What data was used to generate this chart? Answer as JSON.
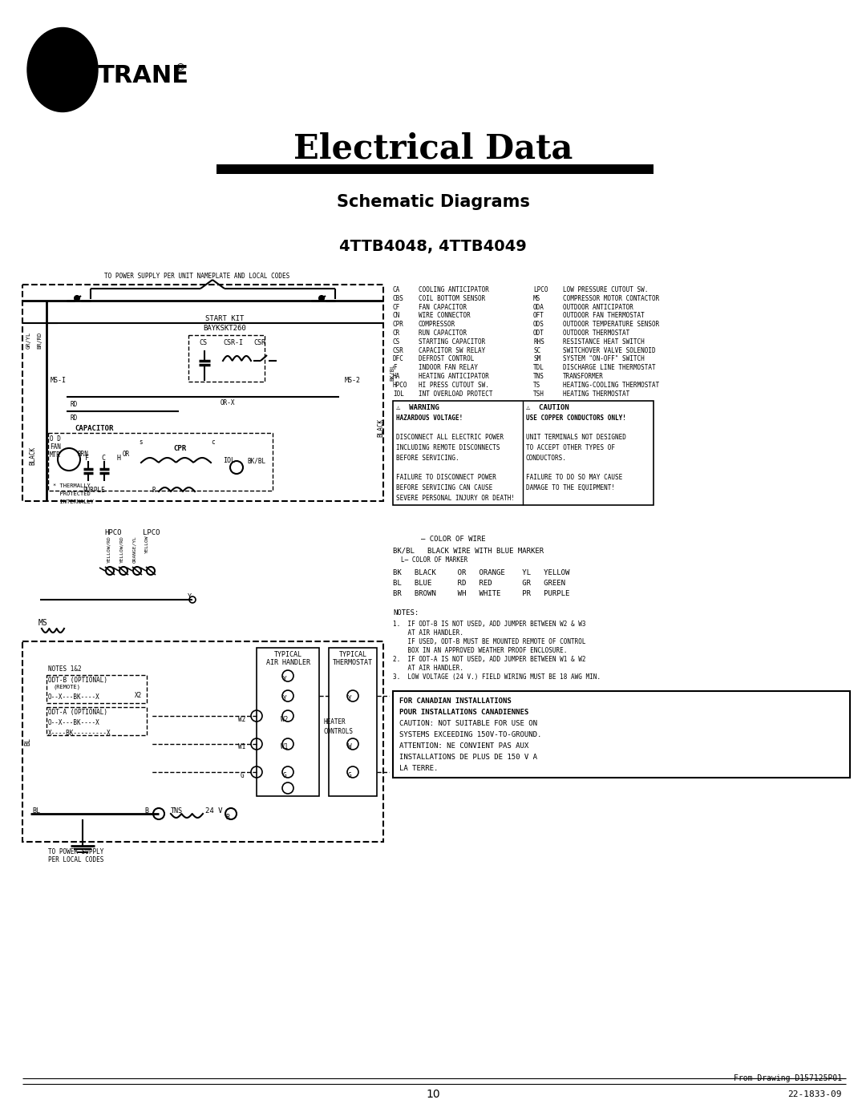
{
  "bg_color": "#ffffff",
  "title_electrical": "Electrical Data",
  "title_schematic": "Schematic Diagrams",
  "title_model": "4TTB4048, 4TTB4049",
  "page_number": "10",
  "doc_number": "22-1833-09",
  "drawing_number": "From Drawing D157125P01",
  "legend_col1": [
    [
      "CA",
      "COOLING ANTICIPATOR"
    ],
    [
      "CBS",
      "COIL BOTTOM SENSOR"
    ],
    [
      "CF",
      "FAN CAPACITOR"
    ],
    [
      "CN",
      "WIRE CONNECTOR"
    ],
    [
      "CPR",
      "COMPRESSOR"
    ],
    [
      "CR",
      "RUN CAPACITOR"
    ],
    [
      "CS",
      "STARTING CAPACITOR"
    ],
    [
      "CSR",
      "CAPACITOR SW RELAY"
    ],
    [
      "DFC",
      "DEFROST CONTROL"
    ],
    [
      "F",
      "INDOOR FAN RELAY"
    ],
    [
      "HA",
      "HEATING ANTICIPATOR"
    ],
    [
      "HPCO",
      "HI PRESS CUTOUT SW."
    ],
    [
      "IOL",
      "INT OVERLOAD PROTECT"
    ]
  ],
  "legend_col2": [
    [
      "LPCO",
      "LOW PRESSURE CUTOUT SW."
    ],
    [
      "MS",
      "COMPRESSOR MOTOR CONTACTOR"
    ],
    [
      "ODA",
      "OUTDOOR ANTICIPATOR"
    ],
    [
      "OFT",
      "OUTDOOR FAN THERMOSTAT"
    ],
    [
      "ODS",
      "OUTDOOR TEMPERATURE SENSOR"
    ],
    [
      "ODT",
      "OUTDOOR THERMOSTAT"
    ],
    [
      "RHS",
      "RESISTANCE HEAT SWITCH"
    ],
    [
      "SC",
      "SWITCHOVER VALVE SOLENOID"
    ],
    [
      "SM",
      "SYSTEM \"ON-OFF\" SWITCH"
    ],
    [
      "TDL",
      "DISCHARGE LINE THERMOSTAT"
    ],
    [
      "TNS",
      "TRANSFORMER"
    ],
    [
      "TS",
      "HEATING-COOLING THERMOSTAT"
    ],
    [
      "TSH",
      "HEATING THERMOSTAT"
    ]
  ],
  "warning_lines": [
    "⚠  WARNING",
    "HAZARDOUS VOLTAGE!",
    "",
    "DISCONNECT ALL ELECTRIC POWER",
    "INCLUDING REMOTE DISCONNECTS",
    "BEFORE SERVICING.",
    "",
    "FAILURE TO DISCONNECT POWER",
    "BEFORE SERVICING CAN CAUSE",
    "SEVERE PERSONAL INJURY OR DEATH!"
  ],
  "caution_lines": [
    "⚠  CAUTION",
    "USE COPPER CONDUCTORS ONLY!",
    "",
    "UNIT TERMINALS NOT DESIGNED",
    "TO ACCEPT OTHER TYPES OF",
    "CONDUCTORS.",
    "",
    "FAILURE TO DO SO MAY CAUSE",
    "DAMAGE TO THE EQUIPMENT!"
  ],
  "notes_lines": [
    "1.  IF ODT-B IS NOT USED, ADD JUMPER BETWEEN W2 & W3",
    "    AT AIR HANDLER.",
    "    IF USED, ODT-B MUST BE MOUNTED REMOTE OF CONTROL",
    "    BOX IN AN APPROVED WEATHER PROOF ENCLOSURE.",
    "2.  IF ODT-A IS NOT USED, ADD JUMPER BETWEEN W1 & W2",
    "    AT AIR HANDLER.",
    "3.  LOW VOLTAGE (24 V.) FIELD WIRING MUST BE 18 AWG MIN."
  ],
  "canadian_lines": [
    "FOR CANADIAN INSTALLATIONS",
    "POUR INSTALLATIONS CANADIENNES",
    "CAUTION: NOT SUITABLE FOR USE ON",
    "SYSTEMS EXCEEDING 150V-TO-GROUND.",
    "ATTENTION: NE CONVIENT PAS AUX",
    "INSTALLATIONS DE PLUS DE 150 V A",
    "LA TERRE."
  ]
}
